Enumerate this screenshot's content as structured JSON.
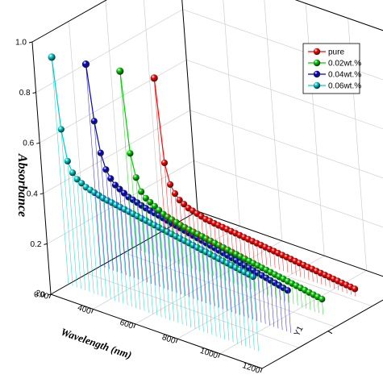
{
  "chart_data": {
    "type": "line",
    "style": "3d-waterfall-with-drop-lines",
    "xlabel": "Wavelength (nm)",
    "ylabel": "Y1",
    "zlabel": "Absorbance",
    "xlim": [
      200,
      1200
    ],
    "zlim": [
      0,
      1.0
    ],
    "x_ticks": [
      "200",
      "400",
      "600",
      "800",
      "1000",
      "1200"
    ],
    "z_ticks": [
      "0.0",
      "0.2",
      "0.4",
      "0.6",
      "0.8",
      "1.0"
    ],
    "y_tick_label": "Y1",
    "grid": true,
    "legend_position": "top-right",
    "x": [
      200,
      220,
      240,
      260,
      280,
      300,
      320,
      340,
      360,
      380,
      400,
      420,
      440,
      460,
      480,
      500,
      520,
      540,
      560,
      580,
      600,
      620,
      640,
      660,
      680,
      700,
      720,
      740,
      760,
      780,
      800,
      820,
      840,
      860,
      880,
      900,
      920,
      940,
      960,
      980,
      1000,
      1020,
      1040,
      1060,
      1080,
      1100
    ],
    "series": [
      {
        "name": "pure",
        "color": "#ff0000",
        "values": [
          0.6,
          0.27,
          0.19,
          0.16,
          0.14,
          0.13,
          0.12,
          0.115,
          0.11,
          0.105,
          0.1,
          0.098,
          0.095,
          0.093,
          0.091,
          0.089,
          0.087,
          0.085,
          0.083,
          0.081,
          0.079,
          0.077,
          0.075,
          0.073,
          0.071,
          0.069,
          0.067,
          0.065,
          0.063,
          0.061,
          0.059,
          0.057,
          0.055,
          0.053,
          0.051,
          0.049,
          0.047,
          0.045,
          0.043,
          0.041,
          0.039,
          0.037,
          0.035,
          0.033,
          0.031,
          0.029
        ]
      },
      {
        "name": "0.02wt.%",
        "color": "#00cc00",
        "values": [
          0.7,
          0.38,
          0.29,
          0.24,
          0.22,
          0.21,
          0.2,
          0.19,
          0.18,
          0.175,
          0.17,
          0.165,
          0.16,
          0.157,
          0.154,
          0.151,
          0.148,
          0.145,
          0.142,
          0.139,
          0.136,
          0.133,
          0.13,
          0.127,
          0.124,
          0.121,
          0.118,
          0.115,
          0.112,
          0.109,
          0.106,
          0.103,
          0.1,
          0.097,
          0.094,
          0.091,
          0.088,
          0.085,
          0.082,
          0.079,
          0.076,
          0.073,
          0.07,
          0.067,
          0.064,
          0.061
        ]
      },
      {
        "name": "0.04wt.%",
        "color": "#0000cc",
        "values": [
          0.8,
          0.58,
          0.46,
          0.4,
          0.37,
          0.35,
          0.34,
          0.33,
          0.32,
          0.315,
          0.31,
          0.305,
          0.3,
          0.296,
          0.292,
          0.288,
          0.284,
          0.28,
          0.276,
          0.272,
          0.268,
          0.264,
          0.26,
          0.256,
          0.252,
          0.248,
          0.244,
          0.24,
          0.236,
          0.232,
          0.228,
          0.224,
          0.22,
          0.216,
          0.212,
          0.208,
          0.204,
          0.2,
          0.196,
          0.192,
          0.188,
          0.184,
          0.18,
          0.176,
          0.172,
          0.168
        ]
      },
      {
        "name": "0.06wt.%",
        "color": "#00cccc",
        "values": [
          0.9,
          0.62,
          0.5,
          0.46,
          0.44,
          0.43,
          0.42,
          0.415,
          0.41,
          0.405,
          0.4,
          0.397,
          0.394,
          0.391,
          0.388,
          0.385,
          0.382,
          0.379,
          0.376,
          0.373,
          0.37,
          0.367,
          0.364,
          0.361,
          0.358,
          0.355,
          0.352,
          0.349,
          0.346,
          0.343,
          0.34,
          0.337,
          0.334,
          0.331,
          0.328,
          0.325,
          0.322,
          0.319,
          0.316,
          0.313,
          0.31,
          0.307,
          0.304,
          0.301,
          0.298,
          0.295
        ]
      }
    ]
  }
}
